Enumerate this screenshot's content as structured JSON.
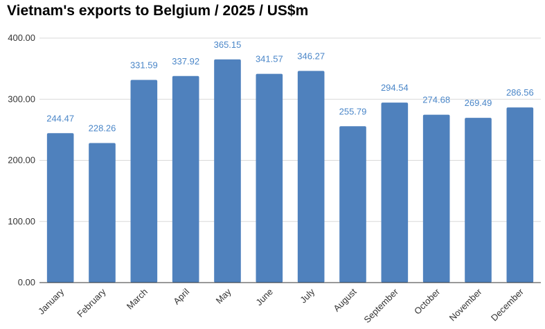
{
  "chart_data": {
    "type": "bar",
    "title": "Vietnam's exports to Belgium / 2025 / US$m",
    "xlabel": "",
    "ylabel": "",
    "categories": [
      "January",
      "February",
      "March",
      "April",
      "May",
      "June",
      "July",
      "August",
      "September",
      "October",
      "November",
      "December"
    ],
    "series": [
      {
        "values": [
          244.47,
          228.26,
          331.59,
          337.92,
          365.15,
          341.57,
          346.27,
          255.79,
          294.54,
          274.68,
          269.49,
          286.56
        ],
        "data_labels": [
          "244.47",
          "228.26",
          "331.59",
          "337.92",
          "365.15",
          "341.57",
          "346.27",
          "255.79",
          "294.54",
          "274.68",
          "269.49",
          "286.56"
        ],
        "color": "#4f81bd"
      }
    ],
    "y_ticks": [
      "0.00",
      "100.00",
      "200.00",
      "300.00",
      "400.00"
    ],
    "ylim": [
      0,
      400
    ],
    "grid": true,
    "legend": "none",
    "label_color": "#4a86c8",
    "x_tick_rotation": -45
  }
}
